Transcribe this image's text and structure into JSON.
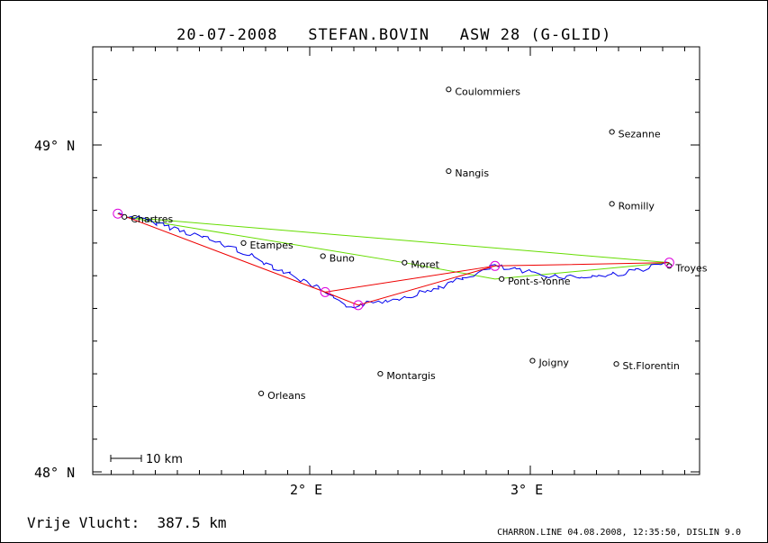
{
  "header": {
    "date": "20-07-2008",
    "pilot": "STEFAN.BOVIN",
    "glider": "ASW 28 (G-GLID)"
  },
  "summary": {
    "label": "Vrije Vlucht:",
    "distance": "387.5 km"
  },
  "footer": {
    "text": "CHARRON.LINE 04.08.2008, 12:35:50, DISLIN 9.0"
  },
  "scale_bar": {
    "label": "10 km",
    "length_km": 10
  },
  "axes": {
    "lat_ticks": [
      {
        "label": "49° N",
        "lat": 49.0
      },
      {
        "label": "48° N",
        "lat": 48.0
      }
    ],
    "lon_ticks": [
      {
        "label": "2° E",
        "lon": 2.0
      },
      {
        "label": "3° E",
        "lon": 3.0
      }
    ],
    "lon_range": [
      1.0,
      3.75
    ],
    "lat_range": [
      47.99,
      49.3
    ]
  },
  "towns": [
    {
      "name": "Coulommiers",
      "lon": 2.63,
      "lat": 49.17
    },
    {
      "name": "Sezanne",
      "lon": 3.37,
      "lat": 49.04
    },
    {
      "name": "Nangis",
      "lon": 2.63,
      "lat": 48.92
    },
    {
      "name": "Romilly",
      "lon": 3.37,
      "lat": 48.82
    },
    {
      "name": "Chartres",
      "lon": 1.16,
      "lat": 48.78
    },
    {
      "name": "Etampes",
      "lon": 1.7,
      "lat": 48.7
    },
    {
      "name": "Buno",
      "lon": 2.06,
      "lat": 48.66
    },
    {
      "name": "Moret",
      "lon": 2.43,
      "lat": 48.64
    },
    {
      "name": "Troyes",
      "lon": 3.63,
      "lat": 48.63
    },
    {
      "name": "Pont-s-Yonne",
      "lon": 2.87,
      "lat": 48.59
    },
    {
      "name": "Joigny",
      "lon": 3.01,
      "lat": 48.34
    },
    {
      "name": "St.Florentin",
      "lon": 3.39,
      "lat": 48.33
    },
    {
      "name": "Montargis",
      "lon": 2.32,
      "lat": 48.3
    },
    {
      "name": "Orleans",
      "lon": 1.78,
      "lat": 48.24
    }
  ],
  "turnpoints": [
    {
      "lon": 1.13,
      "lat": 48.79
    },
    {
      "lon": 2.07,
      "lat": 48.55
    },
    {
      "lon": 2.22,
      "lat": 48.51
    },
    {
      "lon": 2.84,
      "lat": 48.63
    },
    {
      "lon": 3.63,
      "lat": 48.64
    }
  ],
  "optimized_route": [
    {
      "lon": 1.13,
      "lat": 48.79
    },
    {
      "lon": 2.07,
      "lat": 48.55
    },
    {
      "lon": 2.22,
      "lat": 48.51
    },
    {
      "lon": 2.84,
      "lat": 48.63
    },
    {
      "lon": 3.63,
      "lat": 48.64
    }
  ],
  "declared_task": [
    {
      "lon": 1.16,
      "lat": 48.78
    },
    {
      "lon": 3.63,
      "lat": 48.64
    },
    {
      "lon": 2.84,
      "lat": 48.59
    },
    {
      "lon": 2.43,
      "lat": 48.64
    },
    {
      "lon": 1.16,
      "lat": 48.78
    }
  ],
  "colors": {
    "track": "#0000ee",
    "route": "#ee0000",
    "task": "#66dd00",
    "turnpoint": "#dd00dd",
    "frame": "#000000",
    "background": "#ffffff"
  }
}
